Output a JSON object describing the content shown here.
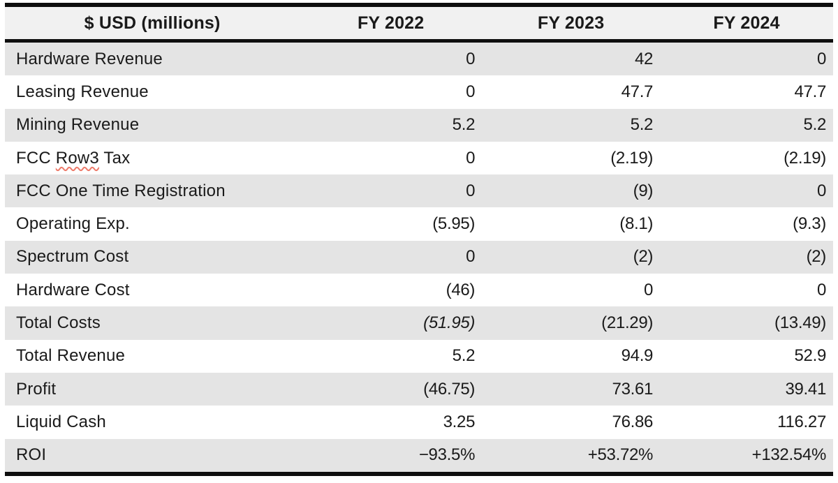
{
  "colors": {
    "border": "#0e0e0e",
    "header_bg": "#f1f1f1",
    "row_stripe_bg": "#e4e4e4",
    "row_plain_bg": "#ffffff",
    "text": "#1a1a1a",
    "spellcheck_underline": "#ee7a6a"
  },
  "table": {
    "header": [
      "$ USD (millions)",
      "FY 2022",
      "FY 2023",
      "FY 2024"
    ],
    "rows": [
      {
        "label": "Hardware Revenue",
        "values": [
          "0",
          "42",
          "0"
        ]
      },
      {
        "label": "Leasing Revenue",
        "values": [
          "0",
          "47.7",
          "47.7"
        ]
      },
      {
        "label": "Mining Revenue",
        "values": [
          "5.2",
          "5.2",
          "5.2"
        ]
      },
      {
        "label": "FCC Row3 Tax",
        "values": [
          "0",
          "(2.19)",
          "(2.19)"
        ],
        "misspelled_word": "Row3"
      },
      {
        "label": "FCC One Time Registration",
        "values": [
          "0",
          "(9)",
          "0"
        ]
      },
      {
        "label": "Operating Exp.",
        "values": [
          "(5.95)",
          "(8.1)",
          "(9.3)"
        ]
      },
      {
        "label": "Spectrum Cost",
        "values": [
          "0",
          "(2)",
          "(2)"
        ]
      },
      {
        "label": "Hardware Cost",
        "values": [
          "(46)",
          "0",
          "0"
        ]
      },
      {
        "label": "Total Costs",
        "values": [
          "(51.95)",
          "(21.29)",
          "(13.49)"
        ],
        "italic_value_index": 0
      },
      {
        "label": "Total Revenue",
        "values": [
          "5.2",
          "94.9",
          "52.9"
        ]
      },
      {
        "label": "Profit",
        "values": [
          "(46.75)",
          "73.61",
          "39.41"
        ]
      },
      {
        "label": "Liquid Cash",
        "values": [
          "3.25",
          "76.86",
          "116.27"
        ]
      },
      {
        "label": "ROI",
        "values": [
          "−93.5%",
          "+53.72%",
          "+132.54%"
        ]
      }
    ]
  }
}
